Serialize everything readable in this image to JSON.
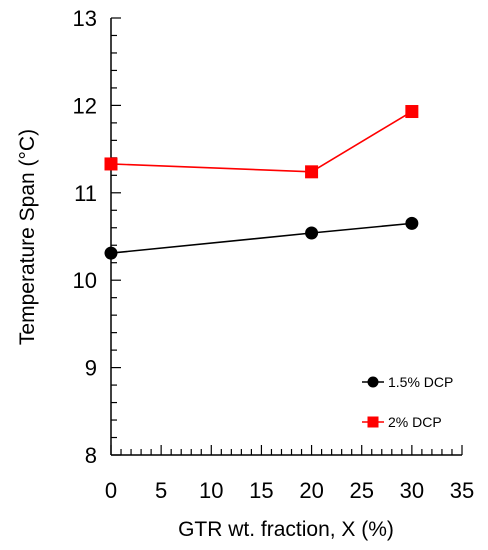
{
  "chart_data": {
    "type": "line",
    "xlabel": "GTR wt. fraction, X (%)",
    "ylabel": "Temperature Span (°C)",
    "xlim": [
      0,
      35
    ],
    "ylim": [
      8,
      13
    ],
    "x_ticks": [
      "0",
      "5",
      "10",
      "15",
      "20",
      "25",
      "30",
      "35"
    ],
    "y_ticks": [
      "8",
      "9",
      "10",
      "11",
      "12",
      "13"
    ],
    "grid": false,
    "legend_position": "bottom-right",
    "series": [
      {
        "name": "1.5% DCP",
        "color": "#000000",
        "marker": "circle",
        "x": [
          0,
          20,
          30
        ],
        "y": [
          10.31,
          10.54,
          10.65
        ]
      },
      {
        "name": "2% DCP",
        "color": "#ff0000",
        "marker": "square",
        "x": [
          0,
          20,
          30
        ],
        "y": [
          11.33,
          11.24,
          11.93
        ]
      }
    ]
  }
}
